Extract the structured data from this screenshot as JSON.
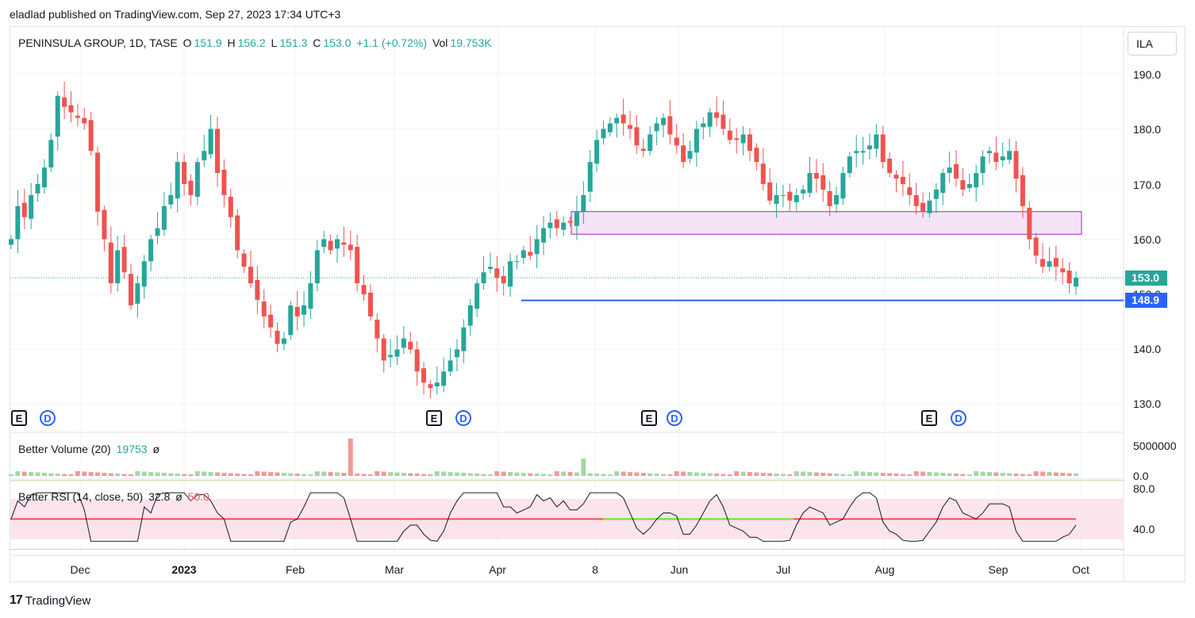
{
  "header": {
    "published": "eladlad published on TradingView.com, Sep 27, 2023 17:34 UTC+3"
  },
  "legend": {
    "symbol": "PENINSULA GROUP, 1D, TASE",
    "o_label": "O",
    "o_value": "151.9",
    "h_label": "H",
    "h_value": "156.2",
    "l_label": "L",
    "l_value": "151.3",
    "c_label": "C",
    "c_value": "153.0",
    "change": "+1.1 (+0.72%)",
    "vol_label": "Vol",
    "vol_value": "19.753K"
  },
  "currency": "ILA",
  "price_axis": [
    "190.0",
    "180.0",
    "170.0",
    "160.0",
    "140.0",
    "130.0"
  ],
  "price_axis_partial": "150.0",
  "last_price_label": "153.0",
  "line_price_label": "148.9",
  "volume_pane": {
    "title": "Better Volume (20)",
    "value": "19753",
    "extra": "ø",
    "axis": [
      "5000000",
      "0.0"
    ]
  },
  "rsi_pane": {
    "title": "Better RSI (14, close, 50)",
    "value": "32.8",
    "extra": "ø",
    "level": "50.0",
    "axis": [
      "80.0",
      "40.0"
    ]
  },
  "time_axis": [
    "Dec",
    "2023",
    "Feb",
    "Mar",
    "Apr",
    "8",
    "Jun",
    "Jul",
    "Aug",
    "Sep",
    "Oct"
  ],
  "events": [
    {
      "e": "E",
      "d": "D"
    },
    {
      "e": "E",
      "d": "D"
    },
    {
      "e": "E",
      "d": "D"
    },
    {
      "e": "E",
      "d": "D"
    }
  ],
  "footer": {
    "brand": "TradingView",
    "logo": "17"
  },
  "colors": {
    "up": "#26a69a",
    "down": "#ef5350",
    "box_fill": "#f3e5f5",
    "box_stroke": "#9c27b0",
    "support": "#2962ff",
    "rsi_band": "#fce4ec"
  },
  "chart_data": {
    "type": "candlestick",
    "symbol": "PENINSULA GROUP",
    "interval": "1D",
    "ylim": [
      128,
      193
    ],
    "x_start": "2022-11-08",
    "x_end": "2023-09-27",
    "close": [
      160,
      166,
      164,
      168,
      170,
      173,
      178,
      186,
      184,
      183,
      182,
      181,
      176,
      165,
      160,
      152,
      158,
      154,
      148,
      152,
      156,
      160,
      162,
      166,
      168,
      174,
      170,
      168,
      174,
      176,
      180,
      172,
      168,
      164,
      158,
      155,
      152,
      149,
      146,
      144,
      141,
      142,
      148,
      146,
      148,
      152,
      158,
      160,
      158,
      160,
      159,
      158,
      152,
      150,
      146,
      142,
      138,
      139,
      140,
      142,
      140,
      136,
      134,
      133,
      134,
      136,
      138,
      140,
      144,
      148,
      152,
      154,
      155,
      153,
      152,
      156,
      156,
      158,
      157,
      160,
      162,
      163,
      162,
      163,
      163,
      165,
      168,
      174,
      178,
      180,
      181,
      182,
      181,
      180,
      177,
      176,
      179,
      181,
      182,
      179,
      177,
      174,
      176,
      180,
      181,
      183,
      182,
      180,
      178,
      178,
      179,
      176,
      174,
      170,
      167,
      168,
      168,
      167,
      168,
      169,
      172,
      171,
      169,
      166,
      168,
      172,
      175,
      176,
      176,
      177,
      179,
      174,
      172,
      171,
      170,
      168,
      166,
      165,
      167,
      169,
      172,
      173,
      171,
      169,
      170,
      172,
      175,
      176,
      174,
      175,
      176,
      171,
      166,
      160,
      157,
      155,
      156,
      155,
      154,
      152,
      153
    ],
    "support_line": 148.9,
    "zone": {
      "from": 160.9,
      "to": 165.0
    },
    "volume_max": 5000000,
    "rsi": {
      "length": 14,
      "source": "close",
      "level": 50,
      "current": 32.8,
      "ylim": [
        20,
        88
      ]
    }
  }
}
